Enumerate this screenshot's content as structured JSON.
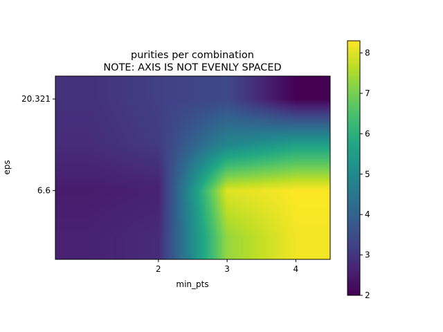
{
  "chart_data": {
    "type": "heatmap",
    "title": "purities per combination",
    "subtitle": "NOTE: AXIS IS NOT EVENLY SPACED",
    "xlabel": "min_pts",
    "ylabel": "eps",
    "x": [
      1,
      2,
      3,
      4
    ],
    "y": [
      1.0,
      6.6,
      13.0,
      20.321
    ],
    "x_tick_labels": [
      "2",
      "3",
      "4"
    ],
    "y_tick_labels": [
      "6.6",
      "20.321"
    ],
    "values": [
      [
        2.6,
        2.8,
        7.3,
        8.2
      ],
      [
        2.5,
        2.6,
        8.0,
        8.3
      ],
      [
        2.8,
        3.1,
        4.9,
        5.6
      ],
      [
        2.9,
        3.2,
        3.4,
        2.0
      ]
    ],
    "interpolation": "bilinear",
    "colormap": "viridis",
    "colorbar": {
      "range": [
        2,
        8.3
      ],
      "ticks": [
        "2",
        "3",
        "4",
        "5",
        "6",
        "7",
        "8"
      ]
    }
  }
}
